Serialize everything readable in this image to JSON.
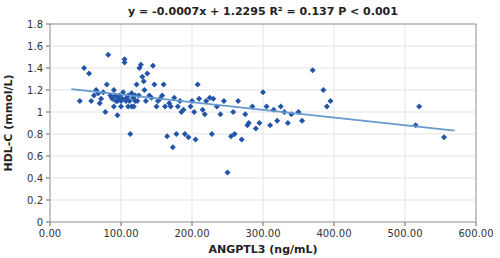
{
  "chart_data": {
    "type": "scatter",
    "title": "y = -0.0007x + 1.2295 R² = 0.137   P < 0.001",
    "x_label": "ANGPTL3 (ng/mL)",
    "y_label": "HDL-C (mmol/L)",
    "xlim": [
      0,
      600
    ],
    "ylim": [
      0,
      1.8
    ],
    "xticks": [
      {
        "value": 0,
        "label": "0.00"
      },
      {
        "value": 100,
        "label": "100.00"
      },
      {
        "value": 200,
        "label": "200.00"
      },
      {
        "value": 300,
        "label": "300.00"
      },
      {
        "value": 400,
        "label": "400.00"
      },
      {
        "value": 500,
        "label": "500.00"
      },
      {
        "value": 600,
        "label": "600.00"
      }
    ],
    "yticks": [
      0,
      0.2,
      0.4,
      0.6,
      0.8,
      1,
      1.2,
      1.4,
      1.6,
      1.8
    ],
    "grid": true,
    "series": [
      {
        "type": "scatter",
        "color": "#2255aa",
        "marker": "diamond",
        "x": [
          42,
          48,
          55,
          58,
          62,
          65,
          68,
          70,
          72,
          75,
          78,
          80,
          82,
          85,
          87,
          88,
          90,
          90,
          92,
          93,
          95,
          95,
          97,
          98,
          100,
          100,
          102,
          103,
          105,
          105,
          107,
          108,
          110,
          110,
          112,
          113,
          115,
          115,
          117,
          118,
          120,
          120,
          122,
          123,
          125,
          126,
          128,
          130,
          132,
          133,
          135,
          137,
          140,
          143,
          145,
          147,
          150,
          152,
          155,
          158,
          160,
          162,
          165,
          168,
          170,
          173,
          175,
          178,
          180,
          183,
          185,
          188,
          190,
          195,
          198,
          200,
          203,
          205,
          208,
          210,
          215,
          218,
          220,
          225,
          228,
          230,
          235,
          240,
          245,
          250,
          255,
          258,
          260,
          265,
          270,
          275,
          278,
          280,
          285,
          290,
          295,
          300,
          305,
          310,
          315,
          320,
          325,
          330,
          335,
          340,
          350,
          355,
          370,
          385,
          390,
          395,
          515,
          520,
          555
        ],
        "values": [
          1.1,
          1.4,
          1.35,
          1.1,
          1.15,
          1.2,
          1.17,
          1.08,
          1.12,
          1.18,
          1.0,
          1.25,
          1.52,
          1.15,
          1.13,
          1.12,
          1.2,
          1.05,
          1.15,
          1.1,
          1.1,
          0.97,
          1.13,
          1.15,
          1.1,
          1.05,
          1.12,
          1.18,
          1.45,
          1.48,
          1.1,
          1.13,
          1.05,
          1.15,
          1.1,
          0.8,
          1.05,
          1.17,
          1.13,
          1.05,
          1.1,
          1.15,
          1.25,
          1.1,
          1.15,
          1.4,
          1.43,
          1.32,
          1.28,
          1.2,
          1.1,
          1.35,
          1.15,
          1.13,
          1.42,
          1.25,
          1.05,
          1.1,
          1.12,
          1.15,
          1.25,
          1.05,
          0.78,
          1.08,
          1.05,
          0.68,
          1.13,
          0.8,
          1.05,
          1.1,
          1.0,
          1.02,
          0.8,
          0.77,
          1.05,
          1.1,
          1.0,
          0.75,
          1.25,
          1.12,
          1.02,
          0.98,
          1.1,
          1.13,
          0.8,
          1.12,
          1.05,
          0.98,
          1.1,
          0.45,
          0.78,
          1.0,
          0.8,
          1.1,
          0.75,
          0.98,
          0.88,
          0.9,
          1.05,
          0.85,
          0.9,
          1.18,
          1.05,
          0.88,
          1.02,
          0.92,
          1.05,
          1.0,
          0.9,
          0.98,
          1.0,
          0.92,
          1.38,
          1.2,
          1.05,
          1.1,
          0.88,
          1.05,
          0.77
        ]
      },
      {
        "type": "line",
        "color": "#6699cc",
        "x": [
          30,
          570
        ],
        "values": [
          1.2085,
          0.8305
        ]
      }
    ]
  }
}
